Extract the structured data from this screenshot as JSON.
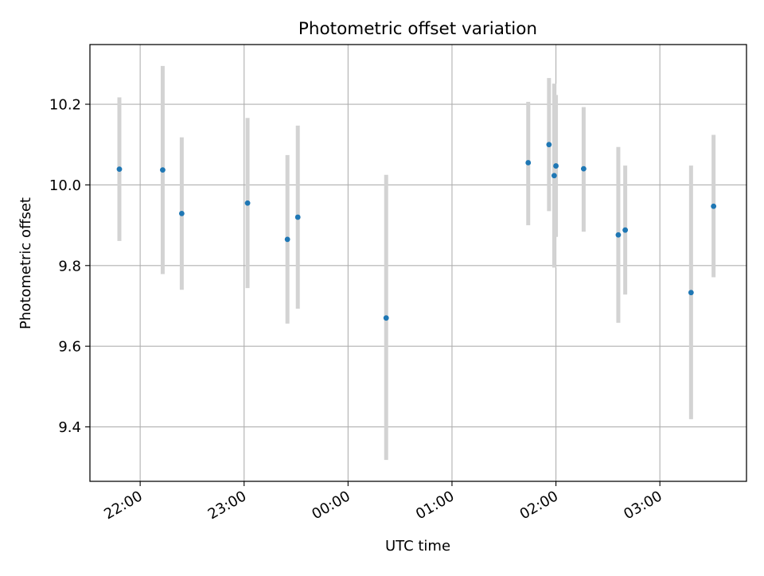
{
  "chart_data": {
    "type": "scatter",
    "title": "Photometric offset variation",
    "xlabel": "UTC time",
    "ylabel": "Photometric offset",
    "x_axis": "time",
    "xlim": [
      "21:31",
      "03:50"
    ],
    "ylim": [
      9.265,
      10.348
    ],
    "grid": true,
    "x_ticks": [
      {
        "time": "22:00",
        "label": "22:00"
      },
      {
        "time": "23:00",
        "label": "23:00"
      },
      {
        "time": "00:00",
        "label": "00:00"
      },
      {
        "time": "01:00",
        "label": "01:00"
      },
      {
        "time": "02:00",
        "label": "02:00"
      },
      {
        "time": "03:00",
        "label": "03:00"
      }
    ],
    "y_ticks": [
      {
        "value": 9.4,
        "label": "9.4"
      },
      {
        "value": 9.6,
        "label": "9.6"
      },
      {
        "value": 9.8,
        "label": "9.8"
      },
      {
        "value": 10.0,
        "label": "10.0"
      },
      {
        "value": 10.2,
        "label": "10.2"
      }
    ],
    "colors": {
      "point": "#1f77b4",
      "errorbar": "#d3d3d3",
      "grid": "#b0b0b0"
    },
    "points": [
      {
        "time": "21:48",
        "y": 10.039,
        "ylo": 9.861,
        "yhi": 10.217
      },
      {
        "time": "22:13",
        "y": 10.037,
        "ylo": 9.779,
        "yhi": 10.295
      },
      {
        "time": "22:24",
        "y": 9.929,
        "ylo": 9.74,
        "yhi": 10.118
      },
      {
        "time": "23:02",
        "y": 9.955,
        "ylo": 9.744,
        "yhi": 10.166
      },
      {
        "time": "23:25",
        "y": 9.865,
        "ylo": 9.656,
        "yhi": 10.074
      },
      {
        "time": "23:31",
        "y": 9.92,
        "ylo": 9.693,
        "yhi": 10.147
      },
      {
        "time": "00:22",
        "y": 9.67,
        "ylo": 9.318,
        "yhi": 10.025
      },
      {
        "time": "01:44",
        "y": 10.055,
        "ylo": 9.9,
        "yhi": 10.206
      },
      {
        "time": "01:56",
        "y": 10.1,
        "ylo": 9.935,
        "yhi": 10.265
      },
      {
        "time": "01:59",
        "y": 10.023,
        "ylo": 9.795,
        "yhi": 10.251
      },
      {
        "time": "02:00",
        "y": 10.047,
        "ylo": 9.871,
        "yhi": 10.223
      },
      {
        "time": "02:16",
        "y": 10.04,
        "ylo": 9.884,
        "yhi": 10.193
      },
      {
        "time": "02:36",
        "y": 9.876,
        "ylo": 9.658,
        "yhi": 10.094
      },
      {
        "time": "02:40",
        "y": 9.888,
        "ylo": 9.728,
        "yhi": 10.048
      },
      {
        "time": "03:18",
        "y": 9.733,
        "ylo": 9.419,
        "yhi": 10.048
      },
      {
        "time": "03:31",
        "y": 9.947,
        "ylo": 9.771,
        "yhi": 10.124
      }
    ]
  }
}
